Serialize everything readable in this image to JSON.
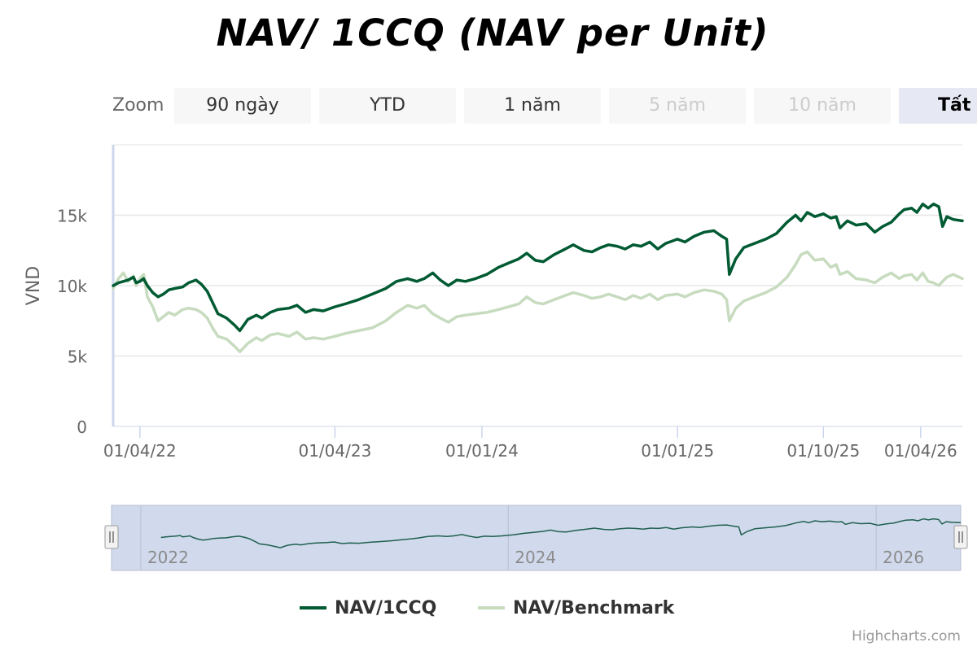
{
  "title": "NAV/ 1CCQ (NAV per Unit)",
  "zoom": {
    "label": "Zoom",
    "buttons": [
      {
        "label": "90 ngày",
        "state": "normal"
      },
      {
        "label": "YTD",
        "state": "normal"
      },
      {
        "label": "1 năm",
        "state": "normal"
      },
      {
        "label": "5 năm",
        "state": "disabled"
      },
      {
        "label": "10 năm",
        "state": "disabled"
      },
      {
        "label": "Tất",
        "state": "active"
      }
    ]
  },
  "legend": [
    {
      "label": "NAV/1CCQ",
      "color": "#005a32"
    },
    {
      "label": "NAV/Benchmark",
      "color": "#c7dbbf"
    }
  ],
  "credits": "Highcharts.com",
  "colors": {
    "nav": "#005a32",
    "benchmark": "#c7dbbf",
    "navigator_fill": "#ccd6eb",
    "navigator_line": "#1f5f4f",
    "grid": "#e6e6e6",
    "axis": "#ccd6eb"
  },
  "chart_data": {
    "type": "line",
    "title": "NAV/ 1CCQ (NAV per Unit)",
    "ylabel": "VND",
    "xlabel": "",
    "ylim": [
      0,
      20000
    ],
    "xlim": [
      "2022-02-10",
      "2026-06-18"
    ],
    "y_ticks": [
      {
        "value": 0,
        "label": "0"
      },
      {
        "value": 5000,
        "label": "5k"
      },
      {
        "value": 10000,
        "label": "10k"
      },
      {
        "value": 15000,
        "label": "15k"
      }
    ],
    "x_ticks": [
      {
        "date": "2022-04-01",
        "label": "01/04/22"
      },
      {
        "date": "2023-04-01",
        "label": "01/04/23"
      },
      {
        "date": "2024-01-01",
        "label": "01/01/24"
      },
      {
        "date": "2025-01-01",
        "label": "01/01/25"
      },
      {
        "date": "2025-10-01",
        "label": "01/10/25"
      },
      {
        "date": "2026-04-01",
        "label": "01/04/26"
      }
    ],
    "grid": true,
    "legend_position": "bottom-center",
    "series": [
      {
        "name": "NAV/1CCQ",
        "color": "#005a32",
        "points": [
          [
            "2022-02-10",
            10000
          ],
          [
            "2022-02-20",
            10200
          ],
          [
            "2022-03-01",
            10300
          ],
          [
            "2022-03-10",
            10400
          ],
          [
            "2022-03-20",
            10600
          ],
          [
            "2022-03-25",
            10200
          ],
          [
            "2022-04-01",
            10300
          ],
          [
            "2022-04-08",
            10500
          ],
          [
            "2022-04-15",
            10000
          ],
          [
            "2022-04-25",
            9500
          ],
          [
            "2022-05-05",
            9200
          ],
          [
            "2022-05-15",
            9400
          ],
          [
            "2022-05-25",
            9700
          ],
          [
            "2022-06-05",
            9800
          ],
          [
            "2022-06-20",
            9900
          ],
          [
            "2022-07-01",
            10200
          ],
          [
            "2022-07-15",
            10400
          ],
          [
            "2022-07-25",
            10100
          ],
          [
            "2022-08-05",
            9600
          ],
          [
            "2022-08-15",
            8800
          ],
          [
            "2022-08-25",
            8000
          ],
          [
            "2022-09-10",
            7700
          ],
          [
            "2022-09-25",
            7200
          ],
          [
            "2022-10-05",
            6800
          ],
          [
            "2022-10-20",
            7600
          ],
          [
            "2022-11-05",
            7900
          ],
          [
            "2022-11-15",
            7700
          ],
          [
            "2022-12-01",
            8100
          ],
          [
            "2022-12-15",
            8300
          ],
          [
            "2023-01-05",
            8400
          ],
          [
            "2023-01-20",
            8600
          ],
          [
            "2023-02-05",
            8100
          ],
          [
            "2023-02-20",
            8300
          ],
          [
            "2023-03-10",
            8200
          ],
          [
            "2023-04-01",
            8500
          ],
          [
            "2023-04-20",
            8700
          ],
          [
            "2023-05-15",
            9000
          ],
          [
            "2023-06-10",
            9400
          ],
          [
            "2023-07-05",
            9800
          ],
          [
            "2023-07-25",
            10300
          ],
          [
            "2023-08-15",
            10500
          ],
          [
            "2023-09-01",
            10300
          ],
          [
            "2023-09-15",
            10500
          ],
          [
            "2023-10-01",
            10900
          ],
          [
            "2023-10-15",
            10400
          ],
          [
            "2023-10-30",
            10000
          ],
          [
            "2023-11-15",
            10400
          ],
          [
            "2023-12-01",
            10300
          ],
          [
            "2023-12-20",
            10500
          ],
          [
            "2024-01-10",
            10800
          ],
          [
            "2024-02-01",
            11300
          ],
          [
            "2024-02-20",
            11600
          ],
          [
            "2024-03-10",
            11900
          ],
          [
            "2024-03-25",
            12300
          ],
          [
            "2024-04-10",
            11800
          ],
          [
            "2024-04-25",
            11700
          ],
          [
            "2024-05-15",
            12200
          ],
          [
            "2024-06-05",
            12600
          ],
          [
            "2024-06-20",
            12900
          ],
          [
            "2024-07-10",
            12500
          ],
          [
            "2024-07-25",
            12400
          ],
          [
            "2024-08-10",
            12700
          ],
          [
            "2024-08-25",
            12900
          ],
          [
            "2024-09-10",
            12800
          ],
          [
            "2024-09-25",
            12600
          ],
          [
            "2024-10-10",
            12900
          ],
          [
            "2024-10-25",
            12800
          ],
          [
            "2024-11-10",
            13100
          ],
          [
            "2024-11-25",
            12600
          ],
          [
            "2024-12-10",
            13000
          ],
          [
            "2025-01-01",
            13300
          ],
          [
            "2025-01-15",
            13100
          ],
          [
            "2025-02-01",
            13500
          ],
          [
            "2025-02-20",
            13800
          ],
          [
            "2025-03-10",
            13900
          ],
          [
            "2025-03-25",
            13500
          ],
          [
            "2025-04-03",
            13300
          ],
          [
            "2025-04-08",
            10800
          ],
          [
            "2025-04-20",
            11900
          ],
          [
            "2025-05-05",
            12700
          ],
          [
            "2025-05-25",
            13000
          ],
          [
            "2025-06-15",
            13300
          ],
          [
            "2025-07-05",
            13700
          ],
          [
            "2025-07-25",
            14500
          ],
          [
            "2025-08-10",
            15000
          ],
          [
            "2025-08-20",
            14600
          ],
          [
            "2025-09-01",
            15200
          ],
          [
            "2025-09-15",
            14900
          ],
          [
            "2025-10-01",
            15100
          ],
          [
            "2025-10-15",
            14800
          ],
          [
            "2025-10-25",
            14900
          ],
          [
            "2025-11-01",
            14100
          ],
          [
            "2025-11-15",
            14600
          ],
          [
            "2025-12-01",
            14300
          ],
          [
            "2025-12-20",
            14400
          ],
          [
            "2026-01-05",
            13800
          ],
          [
            "2026-01-20",
            14200
          ],
          [
            "2026-02-05",
            14500
          ],
          [
            "2026-02-20",
            15100
          ],
          [
            "2026-03-01",
            15400
          ],
          [
            "2026-03-15",
            15500
          ],
          [
            "2026-03-25",
            15200
          ],
          [
            "2026-04-05",
            15800
          ],
          [
            "2026-04-15",
            15500
          ],
          [
            "2026-04-25",
            15800
          ],
          [
            "2026-05-05",
            15600
          ],
          [
            "2026-05-12",
            14200
          ],
          [
            "2026-05-20",
            14900
          ],
          [
            "2026-06-01",
            14700
          ],
          [
            "2026-06-18",
            14600
          ]
        ]
      },
      {
        "name": "NAV/Benchmark",
        "color": "#c7dbbf",
        "points": [
          [
            "2022-02-10",
            9800
          ],
          [
            "2022-02-20",
            10500
          ],
          [
            "2022-03-01",
            10900
          ],
          [
            "2022-03-10",
            10300
          ],
          [
            "2022-03-20",
            10700
          ],
          [
            "2022-03-25",
            10000
          ],
          [
            "2022-04-01",
            10500
          ],
          [
            "2022-04-08",
            10800
          ],
          [
            "2022-04-15",
            9200
          ],
          [
            "2022-04-25",
            8500
          ],
          [
            "2022-05-05",
            7500
          ],
          [
            "2022-05-15",
            7800
          ],
          [
            "2022-05-25",
            8100
          ],
          [
            "2022-06-05",
            7900
          ],
          [
            "2022-06-20",
            8300
          ],
          [
            "2022-07-01",
            8400
          ],
          [
            "2022-07-15",
            8300
          ],
          [
            "2022-07-25",
            8100
          ],
          [
            "2022-08-05",
            7700
          ],
          [
            "2022-08-15",
            7000
          ],
          [
            "2022-08-25",
            6400
          ],
          [
            "2022-09-10",
            6200
          ],
          [
            "2022-09-25",
            5700
          ],
          [
            "2022-10-05",
            5300
          ],
          [
            "2022-10-20",
            5900
          ],
          [
            "2022-11-05",
            6300
          ],
          [
            "2022-11-15",
            6100
          ],
          [
            "2022-12-01",
            6500
          ],
          [
            "2022-12-15",
            6600
          ],
          [
            "2023-01-05",
            6400
          ],
          [
            "2023-01-20",
            6700
          ],
          [
            "2023-02-05",
            6200
          ],
          [
            "2023-02-20",
            6300
          ],
          [
            "2023-03-10",
            6200
          ],
          [
            "2023-04-01",
            6400
          ],
          [
            "2023-04-20",
            6600
          ],
          [
            "2023-05-15",
            6800
          ],
          [
            "2023-06-10",
            7000
          ],
          [
            "2023-07-05",
            7500
          ],
          [
            "2023-07-25",
            8100
          ],
          [
            "2023-08-15",
            8600
          ],
          [
            "2023-09-01",
            8400
          ],
          [
            "2023-09-15",
            8600
          ],
          [
            "2023-10-01",
            8000
          ],
          [
            "2023-10-15",
            7700
          ],
          [
            "2023-10-30",
            7400
          ],
          [
            "2023-11-15",
            7800
          ],
          [
            "2023-12-01",
            7900
          ],
          [
            "2023-12-20",
            8000
          ],
          [
            "2024-01-10",
            8100
          ],
          [
            "2024-02-01",
            8300
          ],
          [
            "2024-02-20",
            8500
          ],
          [
            "2024-03-10",
            8700
          ],
          [
            "2024-03-25",
            9200
          ],
          [
            "2024-04-10",
            8800
          ],
          [
            "2024-04-25",
            8700
          ],
          [
            "2024-05-15",
            9000
          ],
          [
            "2024-06-05",
            9300
          ],
          [
            "2024-06-20",
            9500
          ],
          [
            "2024-07-10",
            9300
          ],
          [
            "2024-07-25",
            9100
          ],
          [
            "2024-08-10",
            9200
          ],
          [
            "2024-08-25",
            9400
          ],
          [
            "2024-09-10",
            9200
          ],
          [
            "2024-09-25",
            9000
          ],
          [
            "2024-10-10",
            9300
          ],
          [
            "2024-10-25",
            9100
          ],
          [
            "2024-11-10",
            9400
          ],
          [
            "2024-11-25",
            9000
          ],
          [
            "2024-12-10",
            9300
          ],
          [
            "2025-01-01",
            9400
          ],
          [
            "2025-01-15",
            9200
          ],
          [
            "2025-02-01",
            9500
          ],
          [
            "2025-02-20",
            9700
          ],
          [
            "2025-03-10",
            9600
          ],
          [
            "2025-03-25",
            9400
          ],
          [
            "2025-04-03",
            9000
          ],
          [
            "2025-04-08",
            7500
          ],
          [
            "2025-04-20",
            8400
          ],
          [
            "2025-05-05",
            8900
          ],
          [
            "2025-05-25",
            9200
          ],
          [
            "2025-06-15",
            9500
          ],
          [
            "2025-07-05",
            9900
          ],
          [
            "2025-07-25",
            10600
          ],
          [
            "2025-08-10",
            11500
          ],
          [
            "2025-08-20",
            12200
          ],
          [
            "2025-09-01",
            12400
          ],
          [
            "2025-09-15",
            11800
          ],
          [
            "2025-10-01",
            11900
          ],
          [
            "2025-10-15",
            11300
          ],
          [
            "2025-10-25",
            11500
          ],
          [
            "2025-11-01",
            10800
          ],
          [
            "2025-11-15",
            11000
          ],
          [
            "2025-12-01",
            10500
          ],
          [
            "2025-12-20",
            10400
          ],
          [
            "2026-01-05",
            10200
          ],
          [
            "2026-01-20",
            10600
          ],
          [
            "2026-02-05",
            10900
          ],
          [
            "2026-02-20",
            10500
          ],
          [
            "2026-03-01",
            10700
          ],
          [
            "2026-03-15",
            10800
          ],
          [
            "2026-03-25",
            10400
          ],
          [
            "2026-04-05",
            10900
          ],
          [
            "2026-04-15",
            10300
          ],
          [
            "2026-04-25",
            10200
          ],
          [
            "2026-05-05",
            10000
          ],
          [
            "2026-05-12",
            10300
          ],
          [
            "2026-05-20",
            10600
          ],
          [
            "2026-06-01",
            10800
          ],
          [
            "2026-06-18",
            10500
          ]
        ]
      }
    ],
    "navigator": {
      "x_ticks": [
        {
          "date": "2022-01-01",
          "label": "2022"
        },
        {
          "date": "2024-01-01",
          "label": "2024"
        },
        {
          "date": "2026-01-01",
          "label": "2026"
        }
      ]
    }
  }
}
